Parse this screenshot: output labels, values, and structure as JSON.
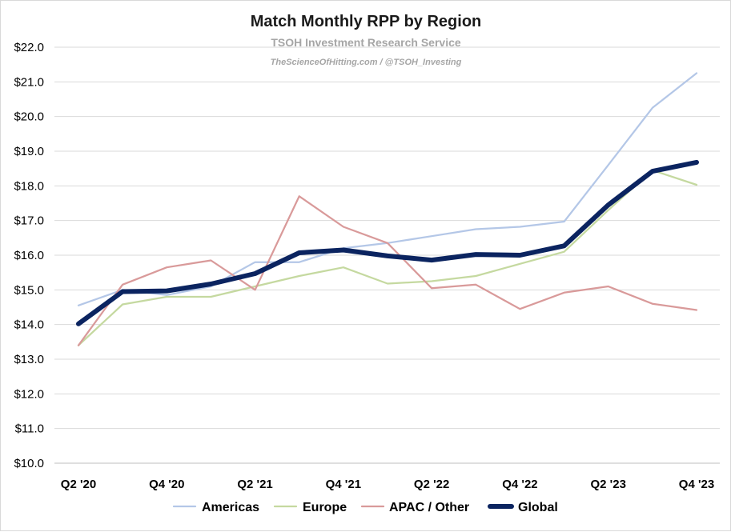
{
  "chart_data": {
    "type": "line",
    "title": "Match Monthly RPP by Region",
    "subtitle": "TSOH Investment Research Service",
    "watermark": "TheScienceOfHitting.com / @TSOH_Investing",
    "ylim": [
      10,
      22
    ],
    "yticks": [
      "$10.0",
      "$11.0",
      "$12.0",
      "$13.0",
      "$14.0",
      "$15.0",
      "$16.0",
      "$17.0",
      "$18.0",
      "$19.0",
      "$20.0",
      "$21.0",
      "$22.0"
    ],
    "x": [
      "Q2 '20",
      "Q3 '20",
      "Q4 '20",
      "Q1 '21",
      "Q2 '21",
      "Q3 '21",
      "Q4 '21",
      "Q1 '22",
      "Q2 '22",
      "Q3 '22",
      "Q4 '22",
      "Q1 '23",
      "Q2 '23",
      "Q3 '23",
      "Q4 '23"
    ],
    "xtick_labels": [
      "Q2 '20",
      "Q4 '20",
      "Q2 '21",
      "Q4 '21",
      "Q2 '22",
      "Q4 '22",
      "Q2 '23",
      "Q4 '23"
    ],
    "grid": true,
    "legend": "bottom",
    "series": [
      {
        "name": "Americas",
        "color": "#b4c7e7",
        "width": "thin",
        "values": [
          14.55,
          15.0,
          14.85,
          15.1,
          15.8,
          15.8,
          16.2,
          16.35,
          16.55,
          16.75,
          16.82,
          16.97,
          18.6,
          20.25,
          21.25
        ]
      },
      {
        "name": "Europe",
        "color": "#c5d9a0",
        "width": "thin",
        "values": [
          13.4,
          14.58,
          14.8,
          14.8,
          15.1,
          15.4,
          15.65,
          15.18,
          15.25,
          15.4,
          15.75,
          16.1,
          17.3,
          18.45,
          18.03
        ]
      },
      {
        "name": "APAC / Other",
        "color": "#d99a9a",
        "width": "thin",
        "values": [
          13.4,
          15.15,
          15.65,
          15.85,
          15.0,
          17.7,
          16.82,
          16.35,
          15.05,
          15.15,
          14.45,
          14.92,
          15.1,
          14.6,
          14.42
        ]
      },
      {
        "name": "Global",
        "color": "#0b2460",
        "width": "thick",
        "values": [
          14.02,
          14.95,
          14.97,
          15.17,
          15.47,
          16.07,
          16.15,
          15.98,
          15.86,
          16.02,
          16.0,
          16.27,
          17.45,
          18.42,
          18.68
        ]
      }
    ]
  }
}
